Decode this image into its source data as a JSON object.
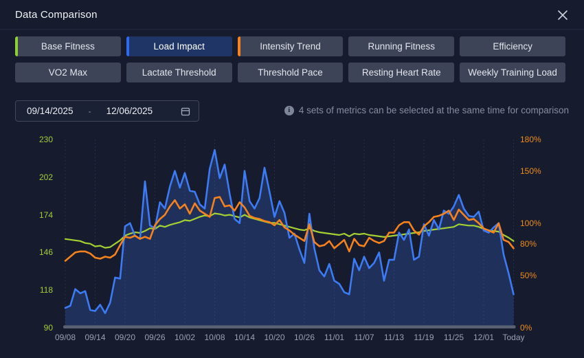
{
  "dialog": {
    "title": "Data Comparison"
  },
  "metrics": {
    "active_bg": "#1f3566",
    "row1": [
      {
        "label": "Base Fitness",
        "accent": "#8ed032",
        "selected": true,
        "active": false
      },
      {
        "label": "Load Impact",
        "accent": "#2e6bf0",
        "selected": true,
        "active": true
      },
      {
        "label": "Intensity Trend",
        "accent": "#f8821d",
        "selected": true,
        "active": false
      },
      {
        "label": "Running Fitness",
        "accent": null,
        "selected": false,
        "active": false
      },
      {
        "label": "Efficiency",
        "accent": null,
        "selected": false,
        "active": false
      }
    ],
    "row2": [
      {
        "label": "VO2 Max",
        "accent": null,
        "selected": false,
        "active": false
      },
      {
        "label": "Lactate Threshold",
        "accent": null,
        "selected": false,
        "active": false
      },
      {
        "label": "Threshold Pace",
        "accent": null,
        "selected": false,
        "active": false
      },
      {
        "label": "Resting Heart Rate",
        "accent": null,
        "selected": false,
        "active": false
      },
      {
        "label": "Weekly Training Load",
        "accent": null,
        "selected": false,
        "active": false
      }
    ]
  },
  "date_range": {
    "start": "09/14/2025",
    "separator": "-",
    "end": "12/06/2025"
  },
  "info": {
    "text": "4 sets of metrics can be selected at the same time for comparison"
  },
  "chart_data": {
    "type": "line",
    "x_labels": [
      "09/08",
      "09/14",
      "09/20",
      "09/26",
      "10/02",
      "10/08",
      "10/14",
      "10/20",
      "10/26",
      "11/01",
      "11/07",
      "11/13",
      "11/19",
      "11/25",
      "12/01",
      "Today"
    ],
    "x_label_step_days": 6,
    "left_axis": {
      "ticks": [
        90,
        118,
        146,
        174,
        202,
        230
      ],
      "range": [
        90,
        230
      ],
      "color": "#a3cc3c"
    },
    "right_axis": {
      "ticks": [
        0,
        50,
        80,
        100,
        150,
        180
      ],
      "tick_suffix": "%",
      "range": [
        0,
        180
      ],
      "color": "#ef8b1c"
    },
    "x_label_color": "#9aa1b2",
    "grid": {
      "vertical": true,
      "horizontal": false
    },
    "series": [
      {
        "name": "Base Fitness",
        "axis": "left",
        "color": "#a4d034",
        "width": 2.2,
        "area": false,
        "values": [
          156,
          155.5,
          155,
          154.5,
          153,
          152.5,
          150.5,
          151,
          149.5,
          150,
          152.5,
          155,
          158.5,
          160,
          161,
          160.5,
          162,
          164,
          163.5,
          166,
          165,
          166.5,
          167.5,
          168.5,
          170,
          169.5,
          171,
          172.5,
          173.5,
          173,
          175,
          174.5,
          173.5,
          174,
          173,
          172,
          174,
          172,
          171,
          170,
          169,
          168,
          168,
          167,
          166,
          165,
          164,
          163,
          162.5,
          164,
          162,
          161,
          160.5,
          160,
          159.5,
          159,
          160,
          158,
          160,
          159.5,
          160,
          159,
          158.5,
          158,
          157.5,
          158,
          158.5,
          159,
          159.5,
          160,
          160.5,
          161,
          162,
          162.5,
          163,
          163.5,
          164,
          164.5,
          165,
          167,
          166.5,
          166,
          166,
          165,
          163.5,
          162.5,
          162,
          161.5,
          159,
          157,
          154.5
        ]
      },
      {
        "name": "Load Impact",
        "axis": "right",
        "color": "#3d7bf5",
        "width": 2.6,
        "area": true,
        "area_fill": "rgba(61,118,235,0.24)",
        "values": [
          19,
          21,
          37,
          33,
          35,
          17,
          16,
          22,
          14,
          24,
          48,
          47,
          97,
          100,
          88,
          85,
          140,
          98,
          95,
          120,
          114,
          135,
          150,
          134,
          148,
          131,
          130,
          118,
          114,
          152,
          170,
          143,
          156,
          128,
          104,
          100,
          150,
          121,
          114,
          124,
          153,
          130,
          106,
          121,
          110,
          86,
          90,
          75,
          62,
          109,
          76,
          55,
          49,
          61,
          45,
          42,
          34,
          32,
          66,
          55,
          68,
          57,
          62,
          72,
          45,
          65,
          65,
          91,
          84,
          94,
          65,
          68,
          99,
          88,
          103,
          94,
          112,
          109,
          116,
          127,
          114,
          107,
          106,
          111,
          93,
          91,
          96,
          100,
          70,
          52,
          32
        ]
      },
      {
        "name": "Intensity Trend",
        "axis": "right",
        "color": "#f5821e",
        "width": 2.6,
        "area": false,
        "values": [
          64,
          68,
          72,
          73,
          73,
          71,
          67,
          66,
          68,
          67,
          70,
          79,
          87,
          86,
          88,
          85,
          87,
          85,
          98,
          104,
          108,
          116,
          122,
          114,
          118,
          109,
          119,
          112,
          109,
          106,
          124,
          125,
          116,
          117,
          112,
          120,
          115,
          107,
          105,
          104,
          102,
          101,
          98,
          103,
          96,
          93,
          89,
          86,
          83,
          99,
          82,
          78,
          79,
          83,
          76,
          80,
          84,
          73,
          85,
          79,
          78,
          86,
          83,
          81,
          83,
          91,
          91,
          98,
          101,
          101,
          93,
          89,
          97,
          101,
          106,
          107,
          109,
          112,
          103,
          113,
          108,
          103,
          104,
          100,
          95,
          93,
          91,
          100,
          84,
          82,
          76
        ]
      }
    ]
  }
}
